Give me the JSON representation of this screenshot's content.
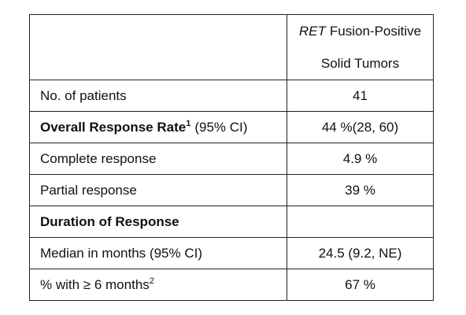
{
  "table": {
    "header": {
      "em": "RET",
      "line1": "Fusion-Positive",
      "line2": "Solid Tumors"
    },
    "rows": [
      {
        "label": "No. of patients",
        "value": "41"
      },
      {
        "label": "Overall Response Rate",
        "sup": "1",
        "note": "(95% CI)",
        "bold": true,
        "value": "44 %(28, 60)"
      },
      {
        "label": "Complete response",
        "value": "4.9 %"
      },
      {
        "label": "Partial response",
        "value": "39 %"
      },
      {
        "label": "Duration of Response",
        "bold": true
      },
      {
        "label": "Median in months (95% CI)",
        "value": "24.5 (9.2, NE)"
      },
      {
        "label": "% with ≥ 6 months",
        "sup": "2",
        "value": "67 %"
      }
    ]
  }
}
